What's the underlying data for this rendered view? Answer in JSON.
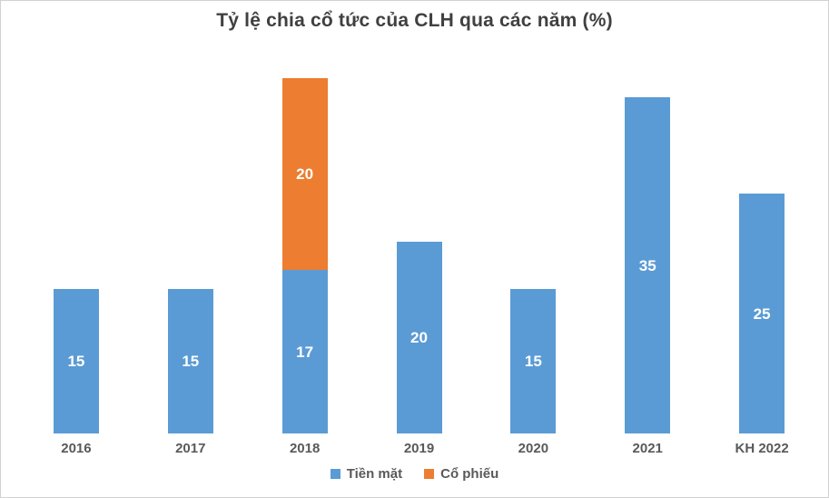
{
  "chart_data": {
    "type": "bar",
    "stacked": true,
    "title": "Tỷ lệ chia cổ tức của CLH qua các năm (%)",
    "categories": [
      "2016",
      "2017",
      "2018",
      "2019",
      "2020",
      "2021",
      "KH 2022"
    ],
    "series": [
      {
        "name": "Tiền mặt",
        "color": "#5B9BD5",
        "values": [
          15,
          15,
          17,
          20,
          15,
          35,
          25
        ]
      },
      {
        "name": "Cổ phiếu",
        "color": "#ED7D31",
        "values": [
          0,
          0,
          20,
          0,
          0,
          0,
          0
        ]
      }
    ],
    "totals": [
      15,
      15,
      37,
      20,
      15,
      35,
      25
    ],
    "xlabel": "",
    "ylabel": "",
    "ylim": [
      0,
      37
    ],
    "grid": false,
    "axis_lines": false,
    "data_labels": true,
    "legend_position": "bottom"
  },
  "style_colors": {
    "title_text": "#404040",
    "axis_text": "#595959",
    "value_label_text": "#ffffff",
    "frame_border": "#d2d2d2",
    "background": "#ffffff"
  }
}
